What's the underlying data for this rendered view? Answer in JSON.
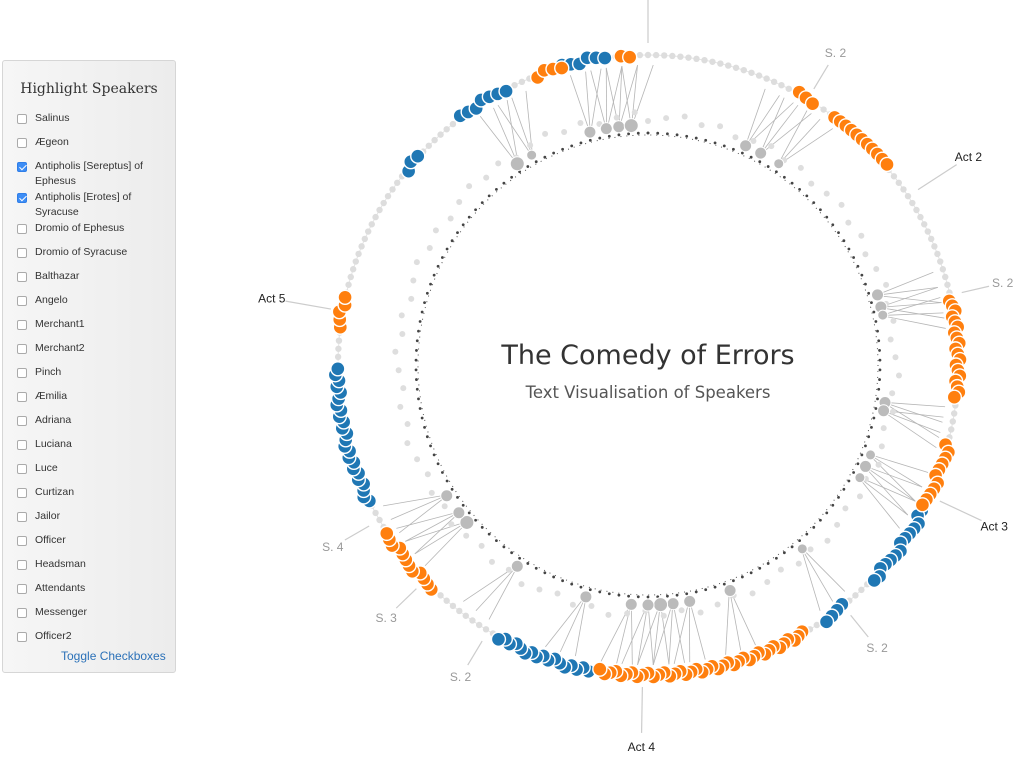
{
  "panel": {
    "title": "Highlight Speakers",
    "toggle_label": "Toggle Checkboxes",
    "speakers": [
      {
        "label": "Salinus",
        "checked": false
      },
      {
        "label": "Ægeon",
        "checked": false
      },
      {
        "label": "Antipholis [Sereptus] of Ephesus",
        "checked": true
      },
      {
        "label": "Antipholis [Erotes] of Syracuse",
        "checked": true
      },
      {
        "label": "Dromio of Ephesus",
        "checked": false
      },
      {
        "label": "Dromio of Syracuse",
        "checked": false
      },
      {
        "label": "Balthazar",
        "checked": false
      },
      {
        "label": "Angelo",
        "checked": false
      },
      {
        "label": "Merchant1",
        "checked": false
      },
      {
        "label": "Merchant2",
        "checked": false
      },
      {
        "label": "Pinch",
        "checked": false
      },
      {
        "label": "Æmilia",
        "checked": false
      },
      {
        "label": "Adriana",
        "checked": false
      },
      {
        "label": "Luciana",
        "checked": false
      },
      {
        "label": "Luce",
        "checked": false
      },
      {
        "label": "Curtizan",
        "checked": false
      },
      {
        "label": "Jailor",
        "checked": false
      },
      {
        "label": "Officer",
        "checked": false
      },
      {
        "label": "Headsman",
        "checked": false
      },
      {
        "label": "Attendants",
        "checked": false
      },
      {
        "label": "Messenger",
        "checked": false
      },
      {
        "label": "Officer2",
        "checked": false
      }
    ]
  },
  "viz": {
    "title": "The Comedy of Errors",
    "subtitle": "Text Visualisation of Speakers",
    "colors": {
      "syracuse": "#ff7f0e",
      "ephesus": "#1f77b4",
      "other": "#dddddd",
      "inner": "#bbbbbb",
      "link": "#b5b5b5",
      "label": "#999999",
      "act_label": "#222222"
    },
    "markers": [
      {
        "label": "Act 2",
        "kind": "act",
        "angle": 57
      },
      {
        "label": "S. 2",
        "kind": "scene",
        "angle": 31
      },
      {
        "label": "S. 2",
        "kind": "scene",
        "angle": 77
      },
      {
        "label": "Act 3",
        "kind": "act",
        "angle": 115
      },
      {
        "label": "S. 2",
        "kind": "scene",
        "angle": 141
      },
      {
        "label": "Act 4",
        "kind": "act",
        "angle": 181
      },
      {
        "label": "S. 2",
        "kind": "scene",
        "angle": 211
      },
      {
        "label": "S. 3",
        "kind": "scene",
        "angle": 226
      },
      {
        "label": "S. 4",
        "kind": "scene",
        "angle": 240
      },
      {
        "label": "Act 5",
        "kind": "act",
        "angle": 280
      }
    ],
    "outer_segments": [
      {
        "speaker": "syracuse",
        "from": 355,
        "to": 357,
        "step": 1.6
      },
      {
        "speaker": "ephesus",
        "from": 344,
        "to": 352,
        "step": 1.6
      },
      {
        "speaker": "syracuse",
        "from": 339,
        "to": 344,
        "step": 1.6
      },
      {
        "speaker": "ephesus",
        "from": 323,
        "to": 333,
        "step": 1.6
      },
      {
        "speaker": "ephesus",
        "from": 309,
        "to": 313,
        "step": 1.6
      },
      {
        "speaker": "syracuse",
        "from": 277,
        "to": 283,
        "step": 1.4
      },
      {
        "speaker": "ephesus",
        "from": 244,
        "to": 270,
        "step": 1.1
      },
      {
        "speaker": "syracuse",
        "from": 224,
        "to": 238,
        "step": 1.2
      },
      {
        "speaker": "ephesus",
        "from": 191,
        "to": 209,
        "step": 1.1
      },
      {
        "speaker": "syracuse",
        "from": 150,
        "to": 189,
        "step": 1.0
      },
      {
        "speaker": "ephesus",
        "from": 141,
        "to": 146,
        "step": 1.4
      },
      {
        "speaker": "ephesus",
        "from": 118,
        "to": 134,
        "step": 1.2
      },
      {
        "speaker": "syracuse",
        "from": 105,
        "to": 118,
        "step": 1.2
      },
      {
        "speaker": "syracuse",
        "from": 78,
        "to": 96,
        "step": 1.0
      },
      {
        "speaker": "syracuse",
        "from": 37,
        "to": 50,
        "step": 1.3
      },
      {
        "speaker": "syracuse",
        "from": 29,
        "to": 33,
        "step": 1.6
      }
    ],
    "inner_nodes": [
      {
        "angle": 350,
        "size": 6
      },
      {
        "angle": 353,
        "size": 6
      },
      {
        "angle": 356,
        "size": 7
      },
      {
        "angle": 346,
        "size": 6
      },
      {
        "angle": 327,
        "size": 7
      },
      {
        "angle": 331,
        "size": 5
      },
      {
        "angle": 24,
        "size": 6
      },
      {
        "angle": 28,
        "size": 6
      },
      {
        "angle": 33,
        "size": 5
      },
      {
        "angle": 73,
        "size": 6
      },
      {
        "angle": 76,
        "size": 6
      },
      {
        "angle": 78,
        "size": 5
      },
      {
        "angle": 99,
        "size": 6
      },
      {
        "angle": 101,
        "size": 6
      },
      {
        "angle": 112,
        "size": 5
      },
      {
        "angle": 115,
        "size": 6
      },
      {
        "angle": 118,
        "size": 5
      },
      {
        "angle": 140,
        "size": 5
      },
      {
        "angle": 160,
        "size": 6
      },
      {
        "angle": 170,
        "size": 6
      },
      {
        "angle": 174,
        "size": 6
      },
      {
        "angle": 177,
        "size": 7
      },
      {
        "angle": 180,
        "size": 6
      },
      {
        "angle": 184,
        "size": 6
      },
      {
        "angle": 195,
        "size": 6
      },
      {
        "angle": 213,
        "size": 6
      },
      {
        "angle": 229,
        "size": 7
      },
      {
        "angle": 232,
        "size": 6
      },
      {
        "angle": 237,
        "size": 6
      }
    ]
  }
}
